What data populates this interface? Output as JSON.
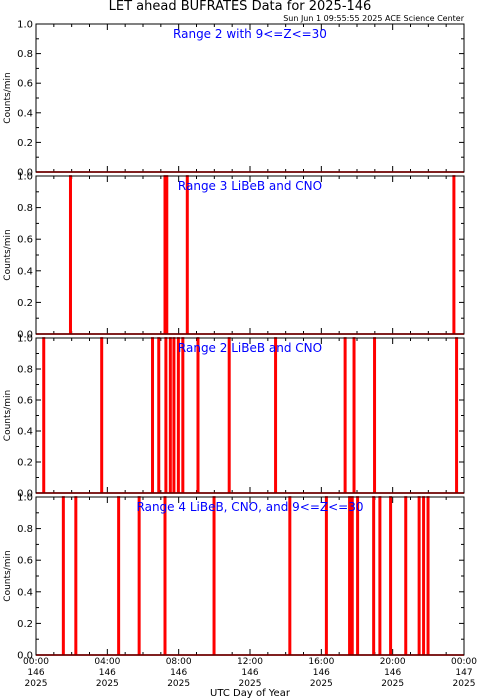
{
  "header": {
    "title": "LET ahead BUFRATES Data for 2025-146",
    "timestamp": "Sun Jun  1 09:55:55 2025 ACE Science Center"
  },
  "colors": {
    "trace": "#ff0000",
    "panel_label": "#0000ff",
    "axis": "#000000"
  },
  "chart_data": [
    {
      "type": "line",
      "title": "Range 2 with 9<=Z<=30",
      "ylabel": "Counts/min",
      "ylim": [
        0,
        1
      ],
      "yticks": [
        "0.0",
        "0.2",
        "0.4",
        "0.6",
        "0.8",
        "1.0"
      ],
      "xlim_hours": [
        0,
        24
      ],
      "spike_hours": []
    },
    {
      "type": "line",
      "title": "Range 3 LiBeB and CNO",
      "ylabel": "Counts/min",
      "ylim": [
        0,
        1
      ],
      "yticks": [
        "0.0",
        "0.2",
        "0.4",
        "0.6",
        "0.8",
        "1.0"
      ],
      "xlim_hours": [
        0,
        24
      ],
      "spike_hours": [
        1.9,
        7.2,
        7.3,
        8.45,
        23.4
      ]
    },
    {
      "type": "line",
      "title": "Range 2 LiBeB and CNO",
      "ylabel": "Counts/min",
      "ylim": [
        0,
        1
      ],
      "yticks": [
        "0.0",
        "0.2",
        "0.4",
        "0.6",
        "0.8",
        "1.0"
      ],
      "xlim_hours": [
        0,
        24
      ],
      "spike_hours": [
        0.4,
        3.65,
        6.5,
        6.85,
        7.25,
        7.5,
        7.7,
        7.95,
        8.2,
        9.05,
        10.8,
        13.4,
        17.3,
        17.8,
        18.95,
        23.55
      ]
    },
    {
      "type": "line",
      "title": "Range 4 LiBeB, CNO, and 9<=Z<=30",
      "ylabel": "Counts/min",
      "ylim": [
        0,
        1
      ],
      "yticks": [
        "0.0",
        "0.2",
        "0.4",
        "0.6",
        "0.8",
        "1.0"
      ],
      "xlim_hours": [
        0,
        24
      ],
      "spike_hours": [
        1.5,
        2.2,
        4.6,
        5.75,
        7.2,
        9.95,
        14.2,
        16.25,
        17.55,
        17.7,
        18.0,
        18.9,
        19.25,
        19.85,
        20.7,
        21.45,
        21.7,
        21.95
      ]
    }
  ],
  "x_axis": {
    "label": "UTC Day of Year",
    "ticks": [
      [
        "00:00",
        "146",
        "2025"
      ],
      [
        "04:00",
        "146",
        "2025"
      ],
      [
        "08:00",
        "146",
        "2025"
      ],
      [
        "12:00",
        "146",
        "2025"
      ],
      [
        "16:00",
        "146",
        "2025"
      ],
      [
        "20:00",
        "146",
        "2025"
      ],
      [
        "00:00",
        "147",
        "2025"
      ]
    ]
  }
}
